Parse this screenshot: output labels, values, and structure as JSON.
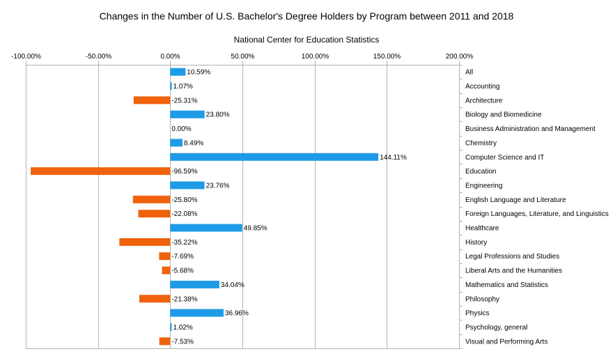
{
  "chart_data": {
    "type": "bar",
    "orientation": "horizontal",
    "title": "Changes in the Number of U.S. Bachelor's Degree Holders by Program between 2011 and 2018",
    "subtitle": "National Center for Education Statistics",
    "xlim": [
      -100,
      200
    ],
    "xticks": [
      -100,
      -50,
      0,
      50,
      100,
      150,
      200
    ],
    "xtick_labels": [
      "-100.00%",
      "-50.00%",
      "0.00%",
      "50.00%",
      "100.00%",
      "150.00%",
      "200.00%"
    ],
    "x_axis_position": "top",
    "category_axis_position": "right",
    "grid": true,
    "legend": false,
    "categories": [
      "All",
      "Accounting",
      "Architecture",
      "Biology and Biomedicine",
      "Business Administration and Management",
      "Chemistry",
      "Computer Science and IT",
      "Education",
      "Engineering",
      "English Language and Literature",
      "Foreign Languages, Literature, and Linguistics",
      "Healthcare",
      "History",
      "Legal Professions and Studies",
      "Liberal Arts and the Humanities",
      "Mathematics and Statistics",
      "Philosophy",
      "Physics",
      "Psychology, general",
      "Visual and Performing Arts"
    ],
    "values": [
      10.59,
      1.07,
      -25.31,
      23.8,
      0.0,
      8.49,
      144.11,
      -96.59,
      23.76,
      -25.8,
      -22.08,
      49.85,
      -35.22,
      -7.69,
      -5.68,
      34.04,
      -21.38,
      36.96,
      1.02,
      -7.53
    ],
    "value_labels": [
      "10.59%",
      "1.07%",
      "-25.31%",
      "23.80%",
      "0.00%",
      "8.49%",
      "144.11%",
      "-96.59%",
      "23.76%",
      "-25.80%",
      "-22.08%",
      "49.85%",
      "-35.22%",
      "-7.69%",
      "-5.68%",
      "34.04%",
      "-21.38%",
      "36.96%",
      "1.02%",
      "-7.53%"
    ],
    "colors": {
      "positive": "#1e9be6",
      "negative": "#f0620c",
      "grid": "#b3b3b3",
      "axis": "#b3b3b3"
    }
  }
}
